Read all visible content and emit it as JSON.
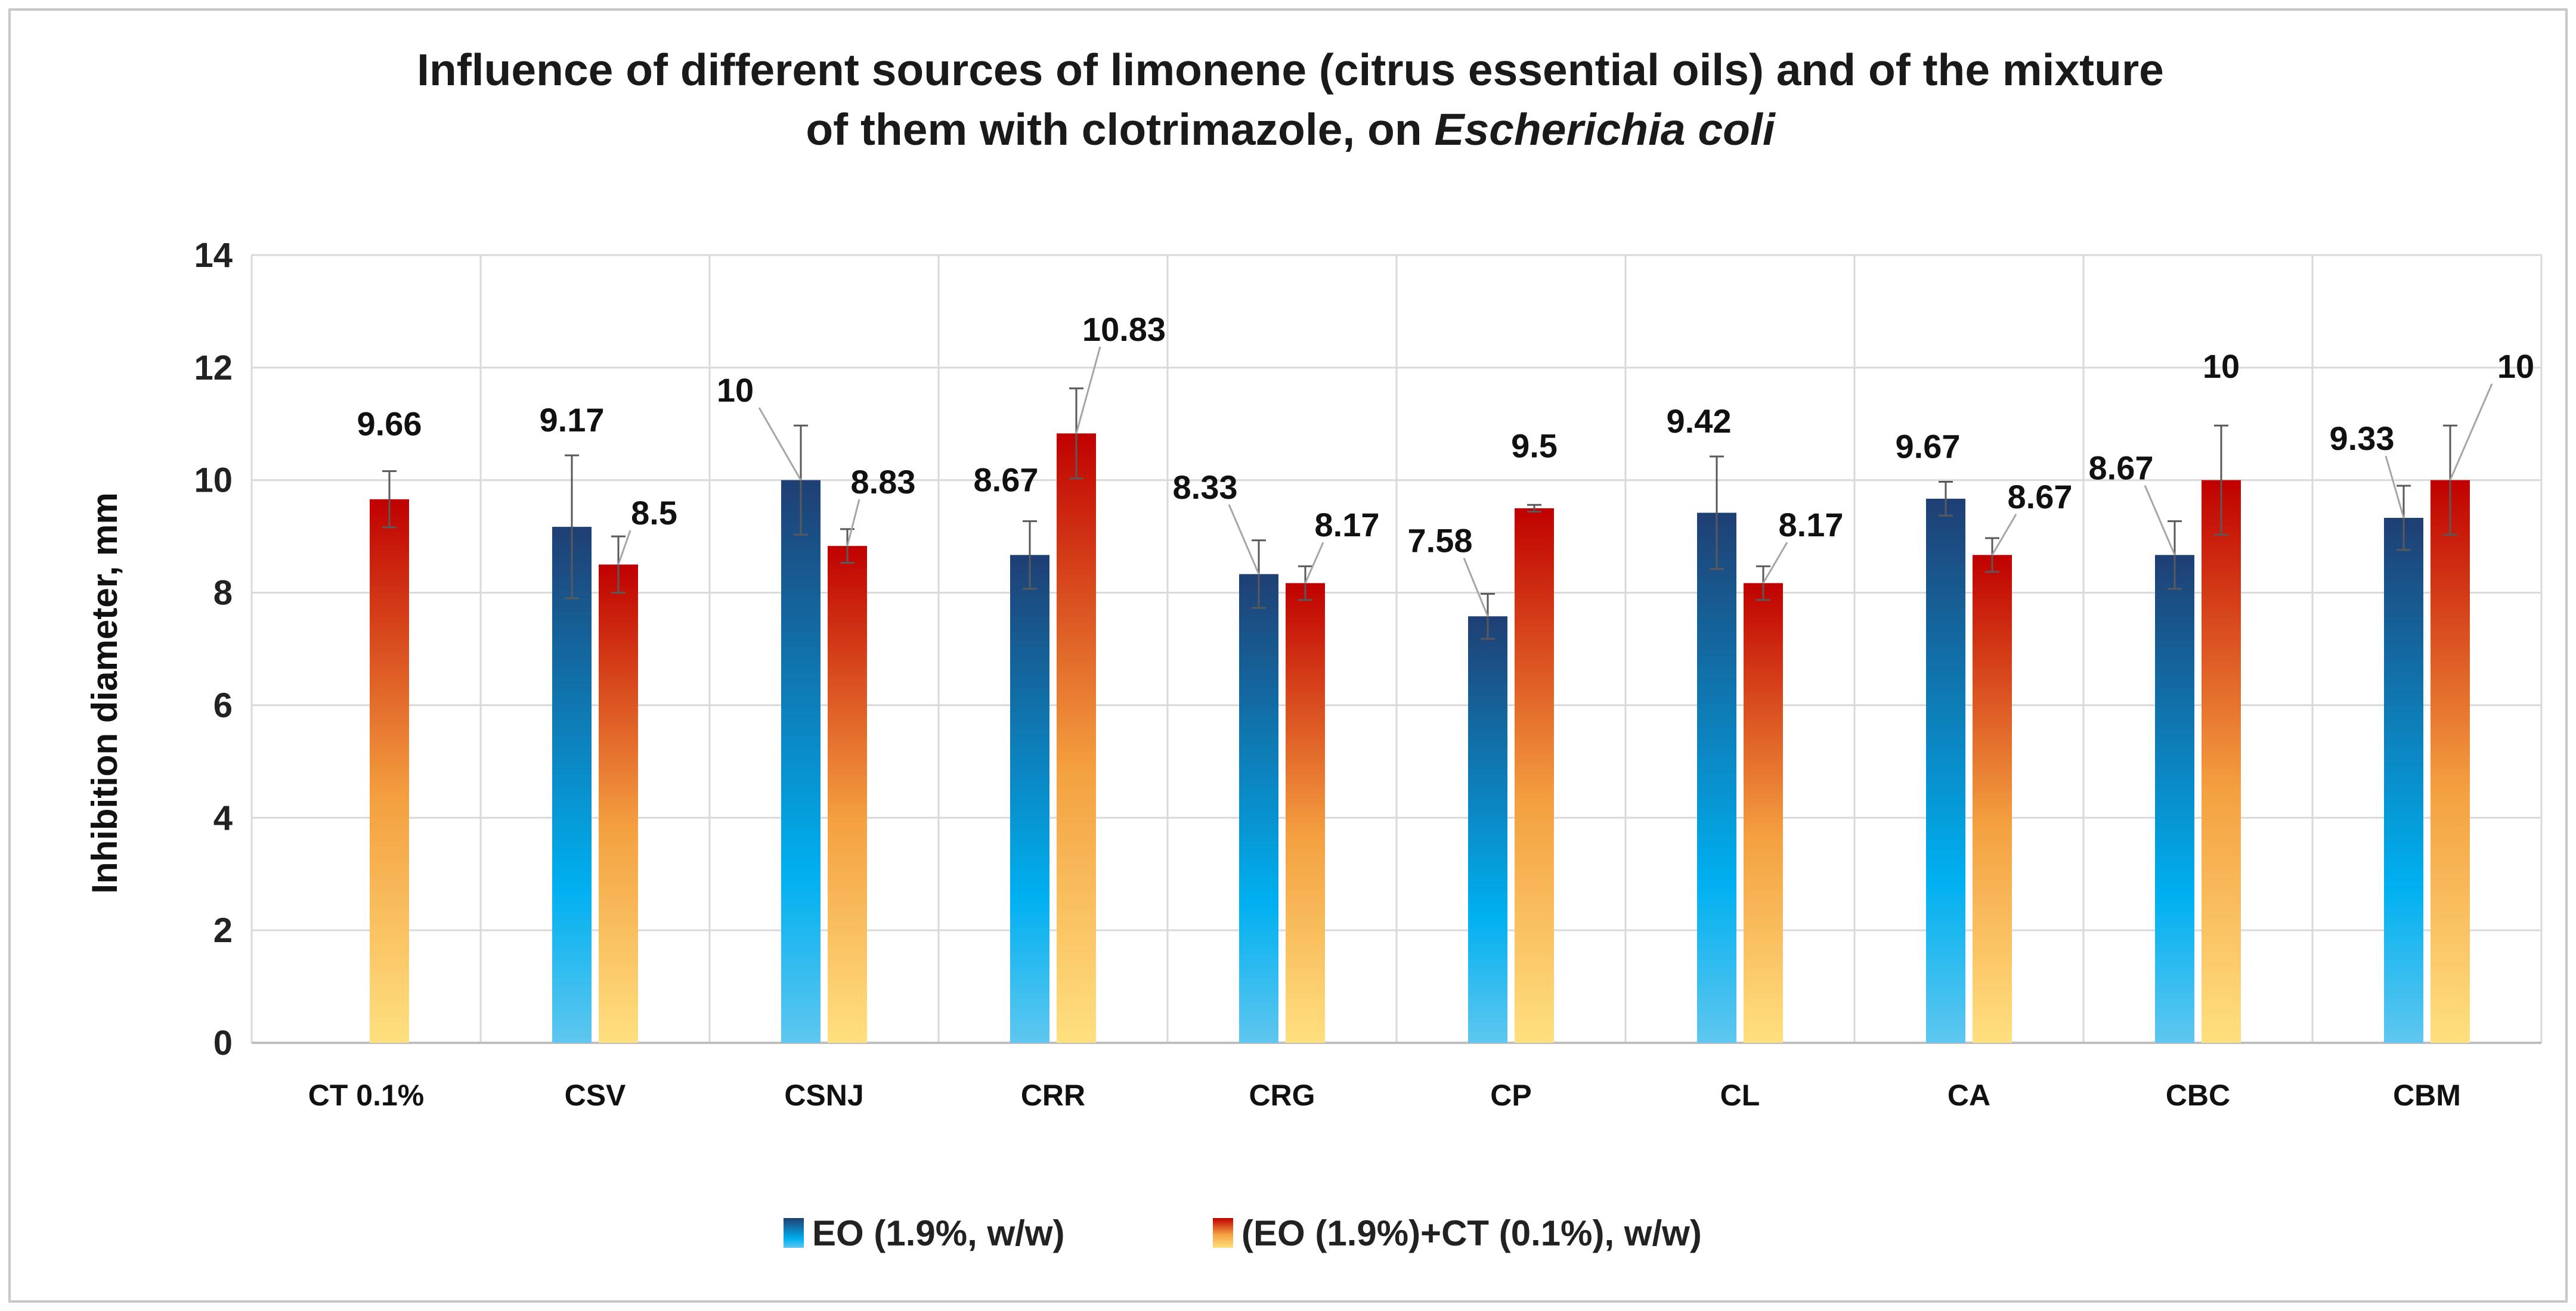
{
  "chart_data": {
    "type": "bar",
    "title_line1": "Influence of different sources of limonene (citrus essential oils) and of the mixture",
    "title_line2_prefix": "of them with clotrimazole, on ",
    "title_line2_italic": "Escherichia coli",
    "ylabel": "Inhibition diameter,  mm",
    "xlabel": "",
    "ylim": [
      0,
      14
    ],
    "yticks": [
      0,
      2,
      4,
      6,
      8,
      10,
      12,
      14
    ],
    "grid": true,
    "legend_position": "bottom",
    "categories": [
      "CT 0.1%",
      "CSV",
      "CSNJ",
      "CRR",
      "CRG",
      "CP",
      "CL",
      "CA",
      "CBC",
      "CBM"
    ],
    "series": [
      {
        "name": "EO (1.9%, w/w)",
        "values": [
          null,
          9.17,
          10,
          8.67,
          8.33,
          7.58,
          9.42,
          9.67,
          8.67,
          9.33
        ],
        "labels": [
          "",
          "9.17",
          "10",
          "8.67",
          "8.33",
          "7.58",
          "9.42",
          "9.67",
          "8.67",
          "9.33"
        ],
        "error": [
          null,
          1.27,
          0.97,
          0.6,
          0.6,
          0.4,
          1.0,
          0.3,
          0.6,
          0.57
        ]
      },
      {
        "name": "(EO (1.9%)+CT (0.1%), w/w)",
        "values": [
          9.66,
          8.5,
          8.83,
          10.83,
          8.17,
          9.5,
          8.17,
          8.67,
          10,
          10
        ],
        "labels": [
          "9.66",
          "8.5",
          "8.83",
          "10.83",
          "8.17",
          "9.5",
          "8.17",
          "8.67",
          "10",
          "10"
        ],
        "error": [
          0.5,
          0.5,
          0.3,
          0.8,
          0.3,
          0.06,
          0.3,
          0.3,
          0.97,
          0.97
        ]
      }
    ],
    "colors": {
      "eo_top": "#1f3f73",
      "eo_mid": "#00b0f0",
      "eo_bottom": "#5ec7ef",
      "mix_top": "#c00000",
      "mix_mid": "#f4a040",
      "mix_bottom": "#ffe080",
      "grid": "#d9d9d9",
      "axis": "#bfbfbf",
      "error_bar": "#595959",
      "leader_line": "#a6a6a6"
    }
  }
}
